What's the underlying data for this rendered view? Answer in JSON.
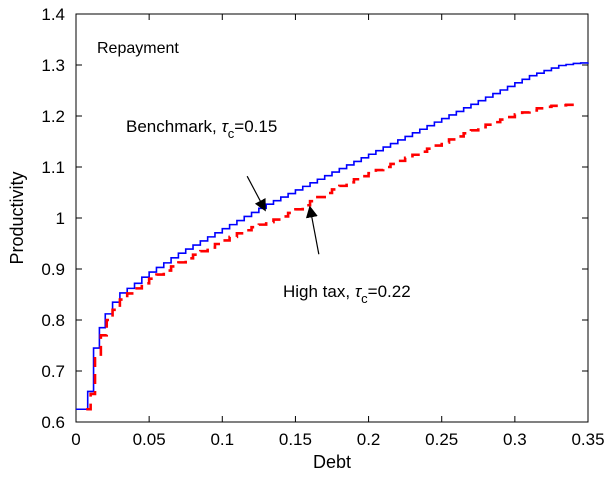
{
  "chart_data": {
    "type": "line",
    "title": "",
    "xlabel": "Debt",
    "ylabel": "Productivity",
    "xlim": [
      0,
      0.35
    ],
    "ylim": [
      0.6,
      1.4
    ],
    "x_ticks": [
      "0",
      "0.05",
      "0.1",
      "0.15",
      "0.2",
      "0.25",
      "0.3",
      "0.35"
    ],
    "y_ticks": [
      "0.6",
      "0.7",
      "0.8",
      "0.9",
      "1",
      "1.1",
      "1.2",
      "1.3",
      "1.4"
    ],
    "x_tick_values": [
      0,
      0.05,
      0.1,
      0.15,
      0.2,
      0.25,
      0.3,
      0.35
    ],
    "y_tick_values": [
      0.6,
      0.7,
      0.8,
      0.9,
      1.0,
      1.1,
      1.2,
      1.3,
      1.4
    ],
    "grid": false,
    "annotation": "Repayment",
    "series": [
      {
        "name": "Benchmark",
        "label_main": "Benchmark, ",
        "label_tau": "τ",
        "label_subscript": "c",
        "label_value": "=0.15",
        "color": "#0000ff",
        "line_style": "solid",
        "x": [
          0,
          0.005,
          0.008,
          0.012,
          0.016,
          0.02,
          0.025,
          0.03,
          0.035,
          0.04,
          0.045,
          0.05,
          0.055,
          0.06,
          0.065,
          0.07,
          0.075,
          0.08,
          0.085,
          0.09,
          0.095,
          0.1,
          0.105,
          0.11,
          0.115,
          0.12,
          0.125,
          0.13,
          0.135,
          0.14,
          0.145,
          0.15,
          0.155,
          0.16,
          0.165,
          0.17,
          0.175,
          0.18,
          0.185,
          0.19,
          0.195,
          0.2,
          0.205,
          0.21,
          0.215,
          0.22,
          0.225,
          0.23,
          0.235,
          0.24,
          0.245,
          0.25,
          0.255,
          0.26,
          0.265,
          0.27,
          0.275,
          0.28,
          0.285,
          0.29,
          0.295,
          0.3,
          0.305,
          0.31,
          0.315,
          0.32,
          0.325,
          0.33,
          0.335,
          0.34,
          0.345,
          0.35
        ],
        "y": [
          0.625,
          0.625,
          0.66,
          0.745,
          0.785,
          0.812,
          0.835,
          0.853,
          0.862,
          0.872,
          0.884,
          0.894,
          0.903,
          0.912,
          0.922,
          0.931,
          0.939,
          0.947,
          0.955,
          0.963,
          0.971,
          0.979,
          0.987,
          0.995,
          1.003,
          1.011,
          1.019,
          1.027,
          1.034,
          1.041,
          1.048,
          1.055,
          1.062,
          1.069,
          1.076,
          1.083,
          1.09,
          1.097,
          1.104,
          1.111,
          1.118,
          1.125,
          1.132,
          1.139,
          1.146,
          1.153,
          1.16,
          1.167,
          1.174,
          1.181,
          1.188,
          1.195,
          1.202,
          1.209,
          1.216,
          1.223,
          1.23,
          1.237,
          1.244,
          1.251,
          1.258,
          1.265,
          1.272,
          1.279,
          1.284,
          1.289,
          1.294,
          1.299,
          1.301,
          1.303,
          1.304,
          1.305
        ]
      },
      {
        "name": "High tax",
        "label_main": "High tax, ",
        "label_tau": "τ",
        "label_subscript": "c",
        "label_value": "=0.22",
        "color": "#ff0000",
        "line_style": "dashed",
        "x": [
          0.007,
          0.01,
          0.013,
          0.017,
          0.021,
          0.025,
          0.03,
          0.035,
          0.04,
          0.045,
          0.05,
          0.055,
          0.06,
          0.065,
          0.07,
          0.075,
          0.08,
          0.085,
          0.09,
          0.095,
          0.1,
          0.105,
          0.11,
          0.115,
          0.12,
          0.125,
          0.13,
          0.135,
          0.14,
          0.145,
          0.15,
          0.155,
          0.16,
          0.165,
          0.17,
          0.175,
          0.18,
          0.185,
          0.19,
          0.195,
          0.2,
          0.205,
          0.21,
          0.215,
          0.22,
          0.225,
          0.23,
          0.235,
          0.24,
          0.245,
          0.25,
          0.255,
          0.26,
          0.265,
          0.27,
          0.275,
          0.28,
          0.285,
          0.29,
          0.295,
          0.3,
          0.305,
          0.31,
          0.315,
          0.32,
          0.325,
          0.33,
          0.335,
          0.34,
          0.345
        ],
        "y": [
          0.625,
          0.655,
          0.725,
          0.77,
          0.8,
          0.82,
          0.84,
          0.852,
          0.862,
          0.872,
          0.881,
          0.889,
          0.897,
          0.905,
          0.913,
          0.921,
          0.928,
          0.935,
          0.942,
          0.949,
          0.956,
          0.963,
          0.97,
          0.976,
          0.982,
          0.987,
          0.992,
          0.997,
          1.003,
          1.01,
          1.017,
          1.025,
          1.033,
          1.041,
          1.049,
          1.056,
          1.063,
          1.07,
          1.076,
          1.082,
          1.088,
          1.094,
          1.1,
          1.106,
          1.112,
          1.118,
          1.124,
          1.13,
          1.136,
          1.142,
          1.148,
          1.154,
          1.16,
          1.166,
          1.172,
          1.178,
          1.183,
          1.188,
          1.193,
          1.198,
          1.203,
          1.207,
          1.211,
          1.215,
          1.218,
          1.22,
          1.221,
          1.222,
          1.222,
          1.222
        ]
      }
    ],
    "arrows": [
      {
        "series": "Benchmark",
        "from": [
          0.117,
          1.082
        ],
        "to": [
          0.129,
          1.017
        ]
      },
      {
        "series": "High tax",
        "from": [
          0.166,
          0.929
        ],
        "to": [
          0.16,
          1.02
        ]
      }
    ]
  }
}
